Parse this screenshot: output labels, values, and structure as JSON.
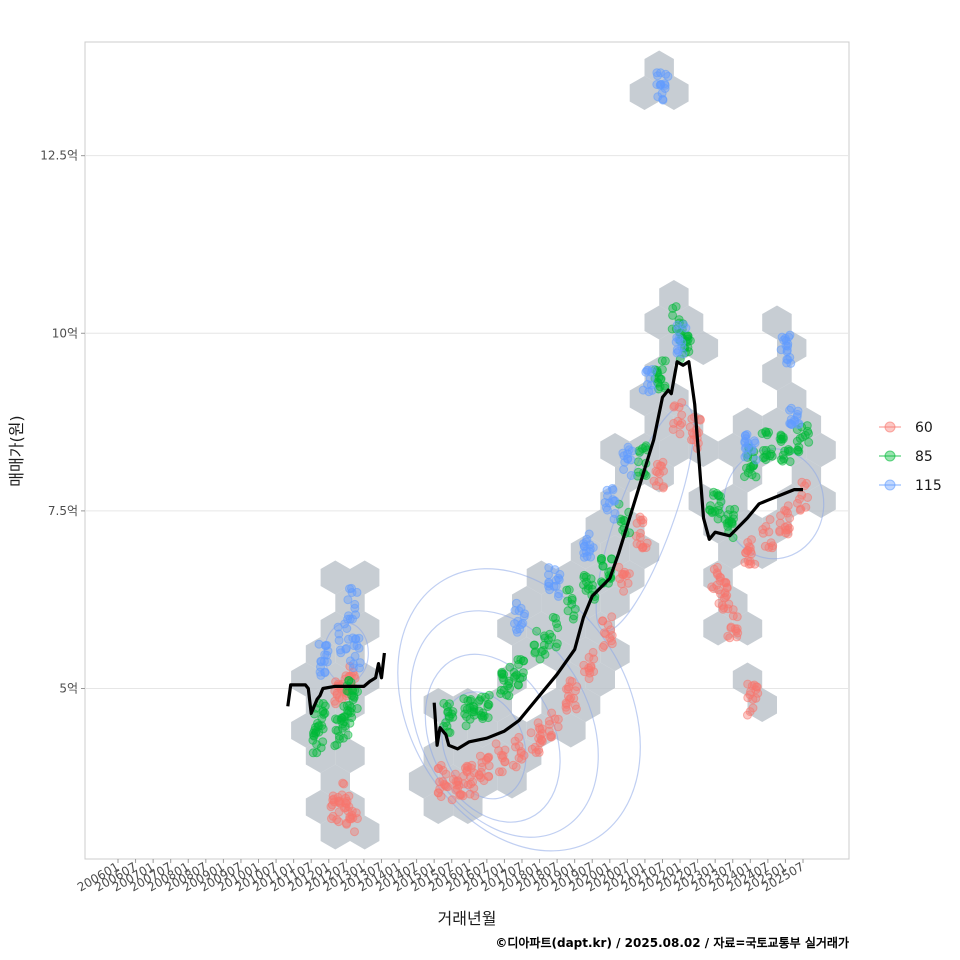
{
  "chart_data": {
    "type": "scatter",
    "xlabel": "거래년월",
    "ylabel": "매매가(원)",
    "caption": "©디아파트(dapt.kr) / 2025.08.02 / 자료=국토교통부 실거래가",
    "x_range": [
      "2006-01",
      "2025-07"
    ],
    "x_tick_labels": [
      "200601",
      "200607",
      "200701",
      "200707",
      "200801",
      "200807",
      "200901",
      "200907",
      "201001",
      "201007",
      "201101",
      "201107",
      "201201",
      "201207",
      "201301",
      "201307",
      "201401",
      "201407",
      "201501",
      "201507",
      "201601",
      "201607",
      "201701",
      "201707",
      "201801",
      "201807",
      "201901",
      "201907",
      "202001",
      "202007",
      "202101",
      "202107",
      "202201",
      "202207",
      "202301",
      "202307",
      "202401",
      "202407",
      "202501",
      "202507"
    ],
    "ylim": [
      2.6,
      14.1
    ],
    "y_ticks": [
      5,
      7.5,
      10,
      12.5
    ],
    "y_tick_labels": [
      "5억",
      "7.5억",
      "10억",
      "12.5억"
    ],
    "grid": true,
    "legend_position": "right",
    "series": [
      {
        "name": "60",
        "color": "#F8766D",
        "anchors": [
          [
            "2012-03",
            3.3
          ],
          [
            "2012-06",
            3.5
          ],
          [
            "2012-09",
            3.2
          ],
          [
            "2012-05",
            4.9
          ],
          [
            "2012-08",
            5.1
          ],
          [
            "2015-04",
            3.7
          ],
          [
            "2015-09",
            3.6
          ],
          [
            "2016-01",
            3.7
          ],
          [
            "2016-06",
            3.9
          ],
          [
            "2016-12",
            4.0
          ],
          [
            "2017-06",
            4.1
          ],
          [
            "2017-12",
            4.3
          ],
          [
            "2018-06",
            4.5
          ],
          [
            "2018-12",
            4.9
          ],
          [
            "2019-06",
            5.3
          ],
          [
            "2019-12",
            5.8
          ],
          [
            "2020-06",
            6.5
          ],
          [
            "2020-12",
            7.2
          ],
          [
            "2021-06",
            8.0
          ],
          [
            "2021-12",
            8.8
          ],
          [
            "2022-06",
            8.6
          ],
          [
            "2023-01",
            6.5
          ],
          [
            "2023-04",
            6.3
          ],
          [
            "2023-07",
            5.9
          ],
          [
            "2024-02",
            4.85
          ],
          [
            "2024-01",
            6.9
          ],
          [
            "2024-07",
            7.2
          ],
          [
            "2025-01",
            7.4
          ],
          [
            "2025-07",
            7.7
          ]
        ]
      },
      {
        "name": "85",
        "color": "#00BA38",
        "anchors": [
          [
            "2011-09",
            4.3
          ],
          [
            "2011-10",
            4.6
          ],
          [
            "2012-05",
            4.4
          ],
          [
            "2012-07",
            4.55
          ],
          [
            "2012-09",
            4.9
          ],
          [
            "2015-06",
            4.6
          ],
          [
            "2016-01",
            4.7
          ],
          [
            "2016-06",
            4.8
          ],
          [
            "2017-01",
            5.1
          ],
          [
            "2017-06",
            5.2
          ],
          [
            "2018-01",
            5.6
          ],
          [
            "2018-06",
            5.8
          ],
          [
            "2018-12",
            6.2
          ],
          [
            "2019-06",
            6.4
          ],
          [
            "2019-12",
            6.7
          ],
          [
            "2020-06",
            7.4
          ],
          [
            "2020-12",
            8.2
          ],
          [
            "2021-06",
            9.4
          ],
          [
            "2021-12",
            10.2
          ],
          [
            "2022-03",
            9.8
          ],
          [
            "2023-01",
            7.6
          ],
          [
            "2023-06",
            7.3
          ],
          [
            "2024-01",
            8.2
          ],
          [
            "2024-07",
            8.4
          ],
          [
            "2025-01",
            8.4
          ],
          [
            "2025-07",
            8.5
          ]
        ]
      },
      {
        "name": "115",
        "color": "#619CFF",
        "anchors": [
          [
            "2011-11",
            5.4
          ],
          [
            "2012-06",
            5.7
          ],
          [
            "2012-09",
            6.2
          ],
          [
            "2012-10",
            5.5
          ],
          [
            "2017-06",
            6.0
          ],
          [
            "2018-06",
            6.5
          ],
          [
            "2019-06",
            7.0
          ],
          [
            "2020-01",
            7.6
          ],
          [
            "2020-07",
            8.2
          ],
          [
            "2021-02",
            9.3
          ],
          [
            "2021-07",
            13.5
          ],
          [
            "2022-01",
            9.9
          ],
          [
            "2024-01",
            8.4
          ],
          [
            "2025-01",
            9.8
          ],
          [
            "2025-04",
            8.9
          ]
        ]
      }
    ],
    "trend_line": {
      "color": "#000000",
      "points": [
        [
          "2010-11",
          4.75
        ],
        [
          "2010-12",
          5.05
        ],
        [
          "2011-03",
          5.05
        ],
        [
          "2011-05",
          5.05
        ],
        [
          "2011-06",
          5.0
        ],
        [
          "2011-07",
          4.65
        ],
        [
          "2011-09",
          4.85
        ],
        [
          "2011-10",
          4.9
        ],
        [
          "2011-11",
          5.0
        ],
        [
          "2012-03",
          5.03
        ],
        [
          "2012-06",
          5.03
        ],
        [
          "2013-01",
          5.03
        ],
        [
          "2013-03",
          5.1
        ],
        [
          "2013-05",
          5.15
        ],
        [
          "2013-06",
          5.35
        ],
        [
          "2013-07",
          5.15
        ],
        [
          "2013-08",
          5.5
        ],
        null,
        [
          "2015-01",
          4.8
        ],
        [
          "2015-02",
          4.2
        ],
        [
          "2015-03",
          4.45
        ],
        [
          "2015-05",
          4.35
        ],
        [
          "2015-06",
          4.2
        ],
        [
          "2015-09",
          4.15
        ],
        [
          "2016-01",
          4.25
        ],
        [
          "2016-07",
          4.3
        ],
        [
          "2017-01",
          4.4
        ],
        [
          "2017-06",
          4.55
        ],
        [
          "2018-01",
          4.9
        ],
        [
          "2018-07",
          5.2
        ],
        [
          "2019-01",
          5.55
        ],
        [
          "2019-04",
          6.0
        ],
        [
          "2019-07",
          6.3
        ],
        [
          "2020-01",
          6.55
        ],
        [
          "2020-04",
          6.9
        ],
        [
          "2020-07",
          7.3
        ],
        [
          "2021-01",
          8.1
        ],
        [
          "2021-04",
          8.5
        ],
        [
          "2021-07",
          9.1
        ],
        [
          "2021-09",
          9.2
        ],
        [
          "2021-10",
          9.15
        ],
        [
          "2021-12",
          9.6
        ],
        [
          "2022-02",
          9.55
        ],
        [
          "2022-04",
          9.6
        ],
        [
          "2022-06",
          9.0
        ],
        [
          "2022-09",
          7.4
        ],
        [
          "2022-11",
          7.1
        ],
        [
          "2023-01",
          7.2
        ],
        [
          "2023-06",
          7.15
        ],
        [
          "2023-12",
          7.4
        ],
        [
          "2024-04",
          7.6
        ],
        [
          "2024-07",
          7.65
        ],
        [
          "2025-01",
          7.75
        ],
        [
          "2025-04",
          7.8
        ],
        [
          "2025-07",
          7.8
        ]
      ]
    }
  }
}
